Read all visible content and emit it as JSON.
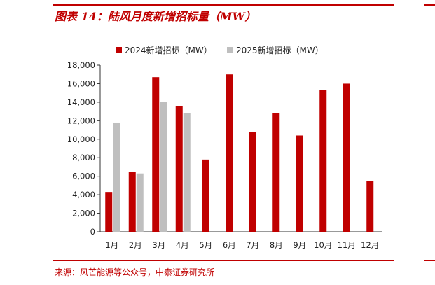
{
  "title": "图表 14：陆风月度新增招标量（MW）",
  "source": "来源：风芒能源等公众号，中泰证券研究所",
  "chart_data": {
    "type": "bar",
    "categories": [
      "1月",
      "2月",
      "3月",
      "4月",
      "5月",
      "6月",
      "7月",
      "8月",
      "9月",
      "10月",
      "11月",
      "12月"
    ],
    "series": [
      {
        "name": "2024新增招标（MW）",
        "color": "#c00000",
        "values": [
          4300,
          6500,
          16700,
          13600,
          7800,
          17000,
          10800,
          12800,
          10400,
          15300,
          16000,
          5500
        ]
      },
      {
        "name": "2025新增招标（MW）",
        "color": "#bfbfbf",
        "values": [
          11800,
          6300,
          14000,
          12800,
          null,
          null,
          null,
          null,
          null,
          null,
          null,
          null
        ]
      }
    ],
    "y_ticks": [
      "0",
      "2,000",
      "4,000",
      "6,000",
      "8,000",
      "10,000",
      "12,000",
      "14,000",
      "16,000",
      "18,000"
    ],
    "ylim": [
      0,
      18000
    ],
    "ystep": 2000,
    "grid": false,
    "legend_position": "top"
  }
}
